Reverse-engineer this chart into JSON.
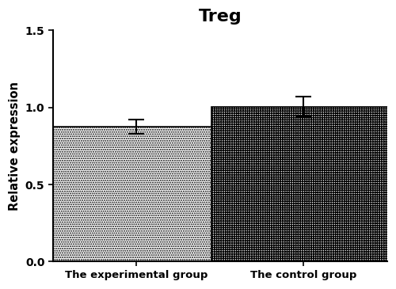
{
  "title": "Treg",
  "ylabel": "Relative expression",
  "categories": [
    "The experimental group",
    "The control group"
  ],
  "values": [
    0.875,
    1.005
  ],
  "errors": [
    0.045,
    0.065
  ],
  "ylim": [
    0,
    1.5
  ],
  "yticks": [
    0.0,
    0.5,
    1.0,
    1.5
  ],
  "bar_width": 0.55,
  "title_fontsize": 16,
  "label_fontsize": 10.5,
  "tick_fontsize": 10,
  "xtick_fontsize": 9.5,
  "background_color": "#ffffff",
  "bar_edge_color": "#000000",
  "error_color": "#000000",
  "x_positions": [
    0.25,
    0.75
  ],
  "xlim": [
    0.0,
    1.0
  ]
}
